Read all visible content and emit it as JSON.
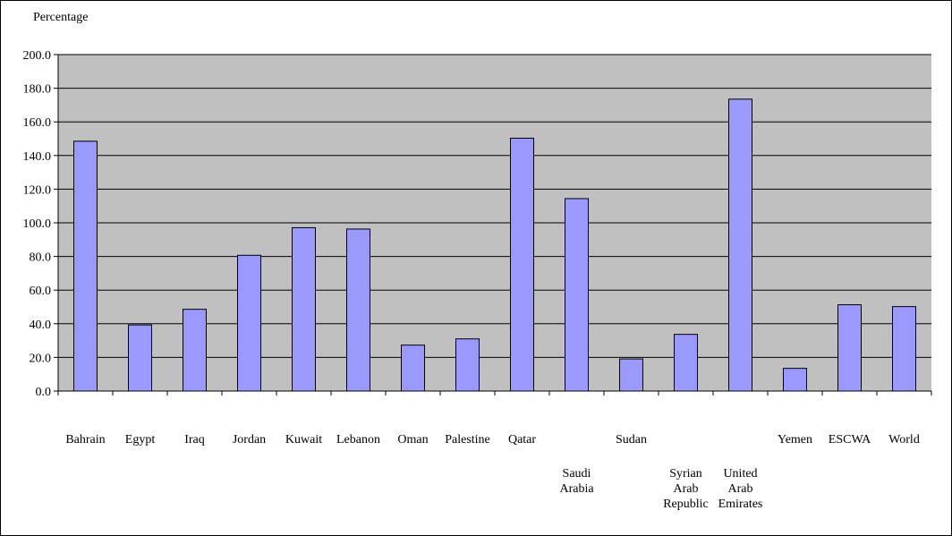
{
  "chart_data": {
    "type": "bar",
    "title": "",
    "xlabel": "",
    "ylabel": "Percentage",
    "ylim": [
      0,
      200
    ],
    "yticks": [
      "0.0",
      "20.0",
      "40.0",
      "60.0",
      "80.0",
      "100.0",
      "120.0",
      "140.0",
      "160.0",
      "180.0",
      "200.0"
    ],
    "grid": true,
    "legend": "none",
    "categories": [
      "Bahrain",
      "Egypt",
      "Iraq",
      "Jordan",
      "Kuwait",
      "Lebanon",
      "Oman",
      "Palestine",
      "Qatar",
      "Saudi Arabia",
      "Sudan",
      "Syrian Arab Republic",
      "United Arab Emirates",
      "Yemen",
      "ESCWA",
      "World"
    ],
    "values": [
      148.5,
      39.3,
      48.6,
      80.7,
      97.1,
      96.3,
      27.3,
      31.0,
      150.3,
      114.4,
      19.1,
      33.7,
      173.5,
      13.5,
      51.3,
      50.2
    ],
    "colors": {
      "plot_background": "#c0c0c0",
      "bar_fill": "#9999ff",
      "bar_stroke": "#000000",
      "gridline": "#000000"
    }
  }
}
